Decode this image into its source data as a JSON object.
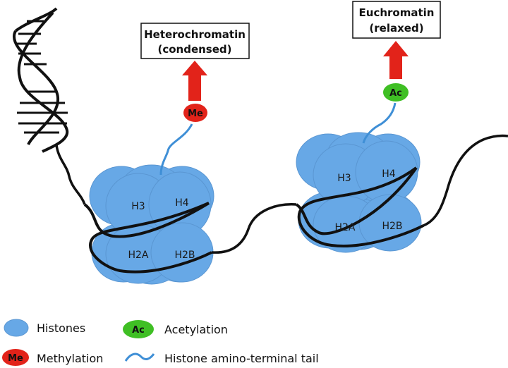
{
  "boxes": {
    "heterochromatin": {
      "line1": "Heterochromatin",
      "line2": "(condensed)"
    },
    "euchromatin": {
      "line1": "Euchromatin",
      "line2": "(relaxed)"
    }
  },
  "nucleosome_left": {
    "h3": "H3",
    "h4": "H4",
    "h2a": "H2A",
    "h2b": "H2B"
  },
  "nucleosome_right": {
    "h3": "H3",
    "h4": "H4",
    "h2a": "H2A",
    "h2b": "H2B"
  },
  "marks": {
    "methyl": "Me",
    "acetyl": "Ac"
  },
  "legend": {
    "histones": "Histones",
    "acetylation_badge": "Ac",
    "acetylation": "Acetylation",
    "methylation_badge": "Me",
    "methylation": "Methylation",
    "tail": "Histone amino-terminal tail"
  },
  "colors": {
    "histone": "#67a8e6",
    "histone_stroke": "#5a96d2",
    "methyl": "#e2231a",
    "acetyl": "#3fbf24",
    "arrow": "#e2231a",
    "tail": "#3f8fd6",
    "dna": "#111111"
  }
}
